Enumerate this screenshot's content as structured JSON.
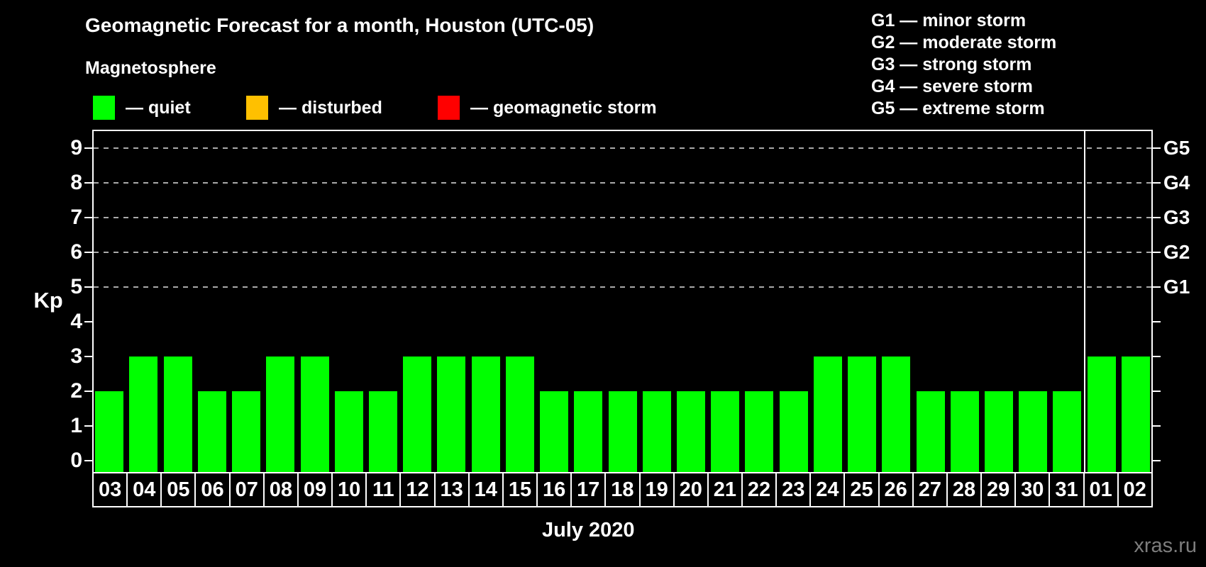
{
  "header": {
    "title": "Geomagnetic Forecast for a month, Houston (UTC-05)",
    "subtitle": "Magnetosphere"
  },
  "legend": {
    "items": [
      {
        "name": "quiet",
        "label": "— quiet",
        "color": "#00ff00"
      },
      {
        "name": "disturbed",
        "label": "— disturbed",
        "color": "#ffc000"
      },
      {
        "name": "geomagnetic-storm",
        "label": "— geomagnetic storm",
        "color": "#ff0000"
      }
    ]
  },
  "g_legend": [
    "G1 — minor storm",
    "G2 — moderate storm",
    "G3 — strong storm",
    "G4 — severe storm",
    "G5 — extreme storm"
  ],
  "chart_data": {
    "type": "bar",
    "title": "Geomagnetic Forecast for a month, Houston (UTC-05)",
    "xlabel": "July 2020",
    "ylabel": "Kp",
    "ylim": [
      0,
      9
    ],
    "yticks": [
      0,
      1,
      2,
      3,
      4,
      5,
      6,
      7,
      8,
      9
    ],
    "categories": [
      "03",
      "04",
      "05",
      "06",
      "07",
      "08",
      "09",
      "10",
      "11",
      "12",
      "13",
      "14",
      "15",
      "16",
      "17",
      "18",
      "19",
      "20",
      "21",
      "22",
      "23",
      "24",
      "25",
      "26",
      "27",
      "28",
      "29",
      "30",
      "31",
      "01",
      "02"
    ],
    "values": [
      2,
      3,
      3,
      2,
      2,
      3,
      3,
      2,
      2,
      3,
      3,
      3,
      3,
      2,
      2,
      2,
      2,
      2,
      2,
      2,
      2,
      3,
      3,
      3,
      2,
      2,
      2,
      2,
      2,
      3,
      3
    ],
    "bar_color": "#00ff00",
    "month_boundary_index": 29,
    "g_levels": [
      {
        "kp": 5,
        "label": "G1"
      },
      {
        "kp": 6,
        "label": "G2"
      },
      {
        "kp": 7,
        "label": "G3"
      },
      {
        "kp": 8,
        "label": "G4"
      },
      {
        "kp": 9,
        "label": "G5"
      }
    ],
    "gridlines": "dashed at G1–G5 levels only",
    "legend_position": "top-left",
    "colors": {
      "background": "#000000",
      "axis": "#ffffff",
      "gridline": "#aaaaaa",
      "watermark_text": "#7d7d7d"
    }
  },
  "footer": {
    "watermark": "xras.ru"
  }
}
